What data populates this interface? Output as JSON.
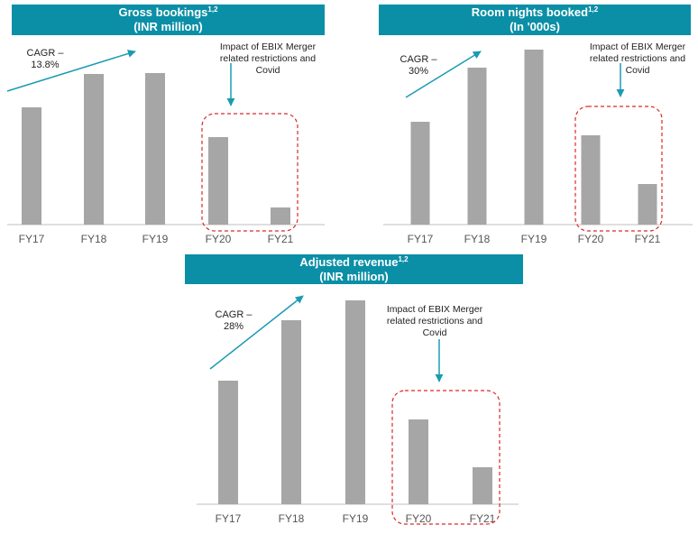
{
  "colors": {
    "banner": "#0B8FA6",
    "bar": "#A6A6A6",
    "arrow": "#1A9BB3",
    "impact_box": "#D9292B",
    "axis": "#BFBFBF"
  },
  "chart_data": [
    {
      "type": "bar",
      "title": "Gross bookings",
      "title_superscript": "1,2",
      "subtitle": "(INR million)",
      "categories": [
        "FY17",
        "FY18",
        "FY19",
        "FY20",
        "FY21"
      ],
      "values": [
        130,
        167,
        168,
        97,
        19
      ],
      "ylim": [
        0,
        200
      ],
      "cagr_label": [
        "CAGR –",
        "13.8%"
      ],
      "impact_note": [
        "Impact of EBIX Merger",
        "related restrictions and",
        "Covid"
      ],
      "highlight_categories": [
        "FY20",
        "FY21"
      ]
    },
    {
      "type": "bar",
      "title": "Room nights booked",
      "title_superscript": "1,2",
      "subtitle": "(In '000s)",
      "categories": [
        "FY17",
        "FY18",
        "FY19",
        "FY20",
        "FY21"
      ],
      "values": [
        114,
        174,
        194,
        99,
        45
      ],
      "ylim": [
        0,
        200
      ],
      "cagr_label": [
        "CAGR –",
        "30%"
      ],
      "impact_note": [
        "Impact of EBIX Merger",
        "related restrictions and",
        "Covid"
      ],
      "highlight_categories": [
        "FY20",
        "FY21"
      ]
    },
    {
      "type": "bar",
      "title": "Adjusted revenue",
      "title_superscript": "1,2",
      "subtitle": "(INR million)",
      "categories": [
        "FY17",
        "FY18",
        "FY19",
        "FY20",
        "FY21"
      ],
      "values": [
        137,
        204,
        226,
        94,
        41
      ],
      "ylim": [
        0,
        240
      ],
      "cagr_label": [
        "CAGR –",
        "28%"
      ],
      "impact_note": [
        "Impact of EBIX Merger",
        "related restrictions and",
        "Covid"
      ],
      "highlight_categories": [
        "FY20",
        "FY21"
      ]
    }
  ]
}
